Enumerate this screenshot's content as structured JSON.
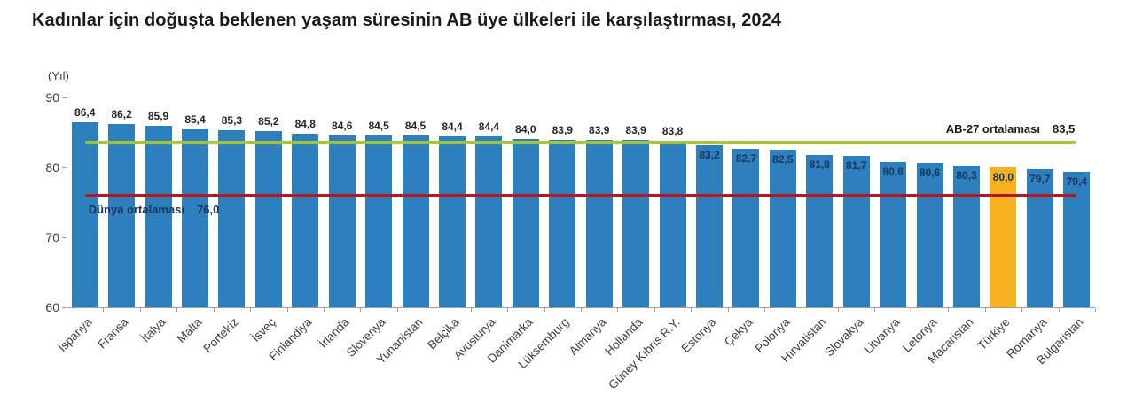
{
  "title": "Kadınlar için doğuşta beklenen yaşam süresinin AB üye ülkeleri ile karşılaştırması, 2024",
  "chart_data": {
    "type": "bar",
    "title": "Kadınlar için doğuşta beklenen yaşam süresinin AB üye ülkeleri ile karşılaştırması, 2024",
    "unit_label": "(Yıl)",
    "ylim": [
      60,
      90
    ],
    "yticks": [
      90,
      80,
      70,
      60
    ],
    "grid": false,
    "legend_position": "none",
    "decimal_separator": ",",
    "categories": [
      "İspanya",
      "Fransa",
      "İtalya",
      "Malta",
      "Portekiz",
      "İsveç",
      "Finlandiya",
      "İrlanda",
      "Slovenya",
      "Yunanistan",
      "Belçika",
      "Avusturya",
      "Danimarka",
      "Lüksemburg",
      "Almanya",
      "Hollanda",
      "Güney Kıbrıs R.Y.",
      "Estonya",
      "Çekya",
      "Polonya",
      "Hırvatistan",
      "Slovakya",
      "Litvanya",
      "Letonya",
      "Macaristan",
      "Türkiye",
      "Romanya",
      "Bulgaristan"
    ],
    "values": [
      86.4,
      86.2,
      85.9,
      85.4,
      85.3,
      85.2,
      84.8,
      84.6,
      84.5,
      84.5,
      84.4,
      84.4,
      84.0,
      83.9,
      83.9,
      83.9,
      83.8,
      83.2,
      82.7,
      82.5,
      81.8,
      81.7,
      80.8,
      80.6,
      80.3,
      80.0,
      79.7,
      79.4
    ],
    "highlight_category": "Türkiye",
    "value_label_inside_when_below": 83.5,
    "reference_lines": [
      {
        "id": "eu27",
        "label": "AB-27 ortalaması",
        "value": 83.5,
        "value_text": "83,5",
        "line_color": "#A3C53C",
        "label_color": "#1a1a1a",
        "label_placement": "above-line-right"
      },
      {
        "id": "world",
        "label": "Dünya ortalaması",
        "value": 76.0,
        "value_text": "76,0",
        "line_color": "#A61F28",
        "label_color": "#17365D",
        "label_placement": "below-line-left"
      }
    ],
    "colors": {
      "bar": "#2D7FBE",
      "highlight_bar": "#F6B220",
      "value_label_above": "#262626",
      "value_label_inside": "#17365D",
      "axis": "#9E9E9E",
      "tick_label": "#3b3b3b",
      "category_label": "#3b3b3b"
    }
  }
}
